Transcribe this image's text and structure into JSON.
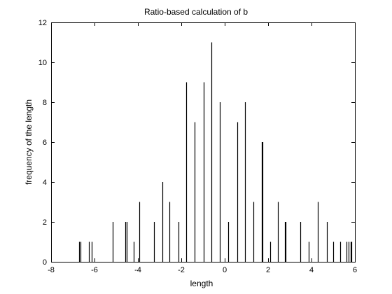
{
  "chart_data": {
    "type": "bar",
    "title": "Ratio-based calculation of b",
    "xlabel": "length",
    "ylabel": "frequency of the length",
    "xlim": [
      -8,
      6
    ],
    "ylim": [
      0,
      12
    ],
    "xticks": [
      -8,
      -6,
      -4,
      -2,
      0,
      2,
      4,
      6
    ],
    "yticks": [
      0,
      2,
      4,
      6,
      8,
      10,
      12
    ],
    "grid": false,
    "legend": "none",
    "bar_color": "#000000",
    "x": [
      -6.7,
      -6.63,
      -6.25,
      -6.12,
      -5.17,
      -4.57,
      -4.52,
      -4.2,
      -3.92,
      -3.26,
      -2.88,
      -2.55,
      -2.13,
      -1.77,
      -1.38,
      -0.98,
      -0.6,
      -0.22,
      0.17,
      0.57,
      0.94,
      1.32,
      1.71,
      1.75,
      2.1,
      2.45,
      2.77,
      2.8,
      3.47,
      3.88,
      4.3,
      4.72,
      5.0,
      5.32,
      5.6,
      5.72,
      5.8,
      5.85
    ],
    "values": [
      1,
      1,
      1,
      1,
      2,
      2,
      2,
      1,
      3,
      2,
      4,
      3,
      2,
      9,
      7,
      9,
      11,
      8,
      2,
      7,
      8,
      3,
      6,
      6,
      1,
      3,
      2,
      2,
      2,
      1,
      3,
      2,
      1,
      1,
      1,
      1,
      1,
      1
    ]
  }
}
